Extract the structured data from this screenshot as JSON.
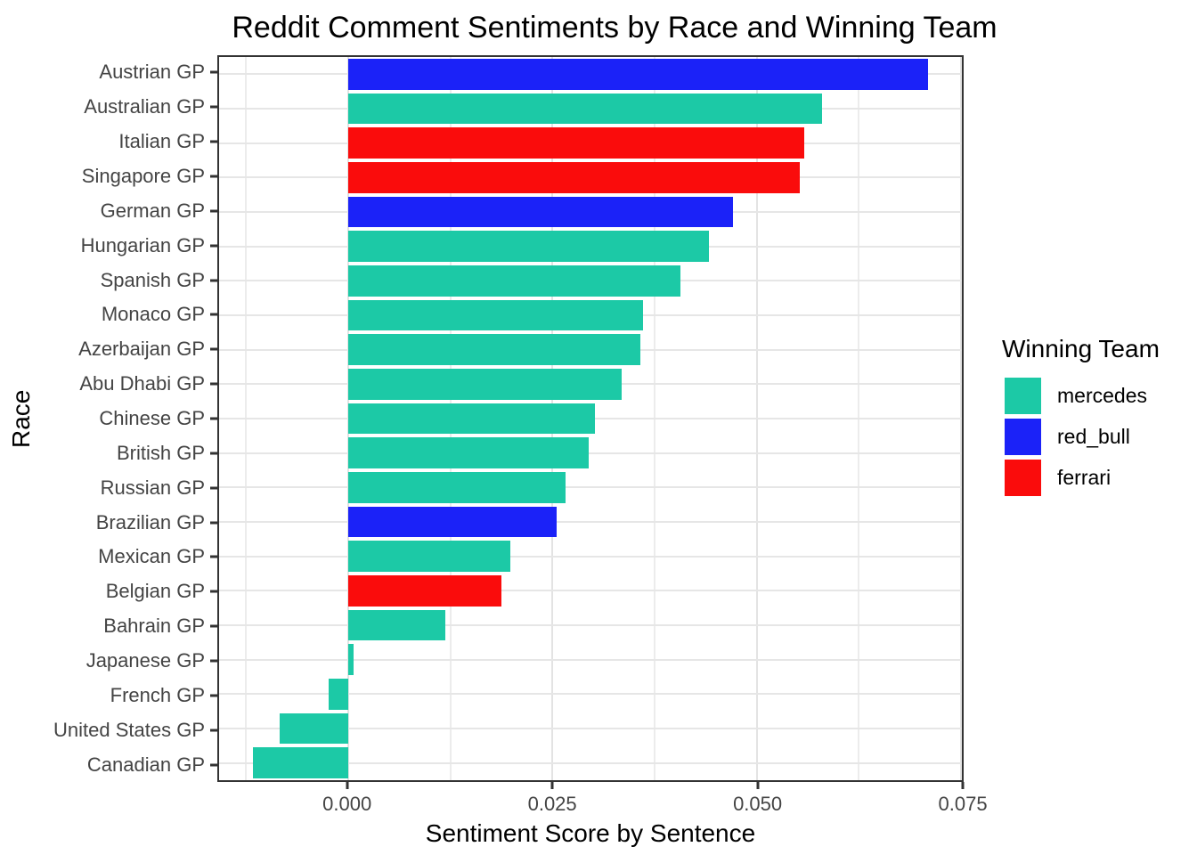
{
  "chart_data": {
    "type": "bar",
    "orientation": "horizontal",
    "title": "Reddit Comment Sentiments by Race and Winning Team",
    "xlabel": "Sentiment Score by Sentence",
    "ylabel": "Race",
    "categories": [
      "Austrian GP",
      "Australian GP",
      "Italian GP",
      "Singapore GP",
      "German GP",
      "Hungarian GP",
      "Spanish GP",
      "Monaco GP",
      "Azerbaijan GP",
      "Abu Dhabi GP",
      "Chinese GP",
      "British GP",
      "Russian GP",
      "Brazilian GP",
      "Mexican GP",
      "Belgian GP",
      "Bahrain GP",
      "Japanese GP",
      "French GP",
      "United States GP",
      "Canadian GP"
    ],
    "values": [
      0.071,
      0.058,
      0.0558,
      0.0553,
      0.0471,
      0.0441,
      0.0407,
      0.0361,
      0.0358,
      0.0335,
      0.0302,
      0.0294,
      0.0266,
      0.0255,
      0.0198,
      0.0187,
      0.0119,
      0.0007,
      -0.0024,
      -0.0084,
      -0.0117
    ],
    "winning_team": [
      "red_bull",
      "mercedes",
      "ferrari",
      "ferrari",
      "red_bull",
      "mercedes",
      "mercedes",
      "mercedes",
      "mercedes",
      "mercedes",
      "mercedes",
      "mercedes",
      "mercedes",
      "red_bull",
      "mercedes",
      "ferrari",
      "mercedes",
      "mercedes",
      "mercedes",
      "mercedes",
      "mercedes"
    ],
    "team_colors": {
      "mercedes": "#1CC9A6",
      "red_bull": "#1B22F8",
      "ferrari": "#FA0C0C"
    },
    "x_ticks": {
      "values": [
        0,
        0.025,
        0.05,
        0.075
      ],
      "labels": [
        "0.000",
        "0.025",
        "0.050",
        "0.075"
      ]
    },
    "x_minor": [
      -0.0125,
      0.0125,
      0.0375,
      0.0625
    ],
    "xlim": [
      -0.0158,
      0.0751
    ],
    "grid": true,
    "legend": {
      "title": "Winning Team",
      "position": "right",
      "entries": [
        "mercedes",
        "red_bull",
        "ferrari"
      ]
    }
  }
}
